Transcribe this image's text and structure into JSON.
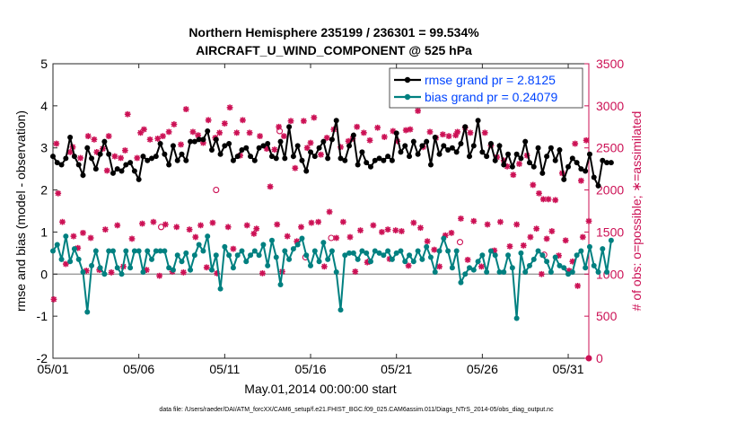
{
  "chart_data": {
    "type": "line",
    "title_line1": "Northern Hemisphere 235199 / 236301 = 99.534%",
    "title_line2": "AIRCRAFT_U_WIND_COMPONENT @ 525 hPa",
    "xlabel": "May.01,2014 00:00:00 start",
    "ylabel_left": "rmse and bias (model - observation)",
    "ylabel_right": "# of obs: o=possible; ∗=assimilated",
    "xlim": [
      0,
      31.2
    ],
    "ylim_left": [
      -2,
      5
    ],
    "ylim_right": [
      0,
      3500
    ],
    "x_ticks": [
      {
        "value": 0,
        "label": "05/01"
      },
      {
        "value": 5,
        "label": "05/06"
      },
      {
        "value": 10,
        "label": "05/11"
      },
      {
        "value": 15,
        "label": "05/16"
      },
      {
        "value": 20,
        "label": "05/21"
      },
      {
        "value": 25,
        "label": "05/26"
      },
      {
        "value": 30,
        "label": "05/31"
      }
    ],
    "y_ticks_left": [
      -2,
      -1,
      0,
      1,
      2,
      3,
      4,
      5
    ],
    "y_ticks_right": [
      0,
      500,
      1000,
      1500,
      2000,
      2500,
      3000,
      3500
    ],
    "footer": "data file: /Users/raeder/DAI/ATM_forcXX/CAM6_setup/f.e21.FHIST_BGC.f09_025.CAM6assim.011/Diags_NTrS_2014-05/obs_diag_output.nc",
    "colors": {
      "rmse": "#000000",
      "bias": "#008080",
      "obs": "#cc1155",
      "legend_text": "#0044ff",
      "right_axis": "#cc1155"
    },
    "series": [
      {
        "name": "rmse grand pr = 2.8125",
        "axis": "left",
        "step_days": 0.25,
        "values": [
          2.8,
          2.65,
          2.6,
          2.75,
          3.25,
          2.8,
          2.6,
          2.35,
          3.0,
          2.75,
          2.5,
          2.85,
          3.15,
          2.85,
          2.4,
          2.5,
          2.45,
          2.6,
          2.65,
          2.45,
          2.25,
          2.8,
          2.7,
          2.75,
          2.8,
          3.1,
          2.85,
          2.6,
          3.05,
          2.7,
          2.85,
          2.7,
          3.15,
          3.15,
          3.2,
          3.2,
          3.4,
          2.95,
          3.2,
          2.85,
          3.05,
          3.1,
          2.7,
          2.8,
          2.95,
          3.0,
          2.8,
          2.7,
          3.0,
          3.05,
          3.1,
          2.8,
          2.75,
          3.15,
          2.75,
          3.5,
          2.8,
          3.05,
          2.7,
          2.45,
          2.9,
          2.8,
          3.0,
          3.15,
          2.75,
          3.2,
          3.65,
          2.75,
          2.7,
          3.05,
          3.3,
          2.6,
          2.9,
          2.65,
          2.55,
          2.7,
          2.75,
          2.7,
          2.8,
          2.7,
          3.35,
          2.9,
          3.05,
          2.8,
          3.15,
          2.85,
          3.05,
          3.15,
          2.6,
          3.25,
          2.85,
          3.05,
          2.95,
          3.0,
          2.9,
          3.1,
          3.5,
          2.8,
          3.05,
          3.65,
          2.9,
          2.8,
          3.1,
          2.7,
          3.05,
          2.6,
          2.85,
          2.55,
          2.85,
          2.75,
          3.15,
          2.65,
          2.55,
          3.0,
          2.4,
          2.8,
          3.0,
          2.7,
          2.95,
          2.25,
          2.55,
          2.75,
          2.65,
          2.5,
          2.45,
          2.85,
          2.3,
          2.1,
          2.7,
          2.65,
          2.65
        ]
      },
      {
        "name": "bias grand pr = 0.24079",
        "axis": "left",
        "step_days": 0.25,
        "values": [
          0.55,
          0.7,
          0.35,
          0.9,
          0.3,
          0.6,
          0.35,
          0.05,
          -0.9,
          0.2,
          0.55,
          0.15,
          0.0,
          0.55,
          0.55,
          0.15,
          0.0,
          0.55,
          0.15,
          0.55,
          0.55,
          0.05,
          0.55,
          0.35,
          0.55,
          0.55,
          0.55,
          0.15,
          0.1,
          0.45,
          0.3,
          0.5,
          0.1,
          0.45,
          0.7,
          0.55,
          0.9,
          0.1,
          0.45,
          -0.35,
          0.65,
          0.45,
          0.15,
          0.45,
          0.55,
          0.3,
          0.45,
          0.55,
          0.45,
          0.7,
          0.2,
          0.8,
          0.4,
          -0.25,
          0.55,
          0.35,
          0.6,
          0.7,
          0.85,
          0.45,
          0.2,
          0.55,
          0.3,
          0.75,
          0.35,
          0.55,
          0.05,
          -0.85,
          0.45,
          0.5,
          0.5,
          0.35,
          0.55,
          0.5,
          0.3,
          0.55,
          0.5,
          0.45,
          0.55,
          0.35,
          0.5,
          0.55,
          0.3,
          0.45,
          0.3,
          0.55,
          0.35,
          0.65,
          0.4,
          0.05,
          0.55,
          0.85,
          0.55,
          0.15,
          0.55,
          -0.2,
          0.0,
          0.15,
          0.1,
          0.3,
          0.45,
          0.05,
          0.55,
          0.45,
          0.05,
          0.05,
          0.45,
          0.15,
          -1.05,
          0.5,
          0.05,
          0.2,
          0.35,
          0.55,
          0.45,
          0.3,
          0.05,
          0.4,
          0.2,
          0.15,
          0.0,
          0.05,
          0.45,
          0.55,
          0.15,
          0.65,
          0.2,
          0.05,
          0.6,
          0.05,
          0.8
        ]
      }
    ],
    "obs_points": [
      [
        0.05,
        700
      ],
      [
        0.2,
        2550
      ],
      [
        0.3,
        1960
      ],
      [
        0.55,
        1620
      ],
      [
        0.75,
        1120
      ],
      [
        1.0,
        2450
      ],
      [
        1.15,
        2510
      ],
      [
        1.2,
        1450
      ],
      [
        1.45,
        1310
      ],
      [
        1.6,
        2380
      ],
      [
        1.75,
        1490
      ],
      [
        1.95,
        1040
      ],
      [
        2.05,
        2640
      ],
      [
        2.2,
        1430
      ],
      [
        2.4,
        2600
      ],
      [
        2.55,
        2450
      ],
      [
        2.7,
        1050
      ],
      [
        2.9,
        2490
      ],
      [
        3.05,
        1530
      ],
      [
        3.15,
        2230
      ],
      [
        3.25,
        2640
      ],
      [
        3.4,
        1020
      ],
      [
        3.6,
        2400
      ],
      [
        3.75,
        1580
      ],
      [
        3.95,
        2380
      ],
      [
        4.1,
        1090
      ],
      [
        4.2,
        2470
      ],
      [
        4.35,
        2900
      ],
      [
        4.6,
        1420
      ],
      [
        4.9,
        2380
      ],
      [
        5.1,
        2680
      ],
      [
        5.2,
        1600
      ],
      [
        5.3,
        2720
      ],
      [
        5.45,
        1050
      ],
      [
        5.65,
        2600
      ],
      [
        5.85,
        1620
      ],
      [
        6.1,
        2610
      ],
      [
        6.2,
        980
      ],
      [
        6.4,
        2640
      ],
      [
        6.55,
        1590
      ],
      [
        6.75,
        2690
      ],
      [
        6.95,
        1030
      ],
      [
        7.05,
        2780
      ],
      [
        7.2,
        1560
      ],
      [
        7.45,
        2540
      ],
      [
        7.6,
        1020
      ],
      [
        7.75,
        2960
      ],
      [
        7.95,
        1530
      ],
      [
        8.15,
        2690
      ],
      [
        8.3,
        1440
      ],
      [
        8.45,
        2650
      ],
      [
        8.6,
        1580
      ],
      [
        8.75,
        2560
      ],
      [
        8.95,
        1080
      ],
      [
        9.05,
        2830
      ],
      [
        9.3,
        1610
      ],
      [
        9.45,
        2620
      ],
      [
        9.55,
        1010
      ],
      [
        9.7,
        2680
      ],
      [
        10.0,
        2790
      ],
      [
        10.2,
        1560
      ],
      [
        10.3,
        2980
      ],
      [
        10.5,
        1300
      ],
      [
        10.7,
        2680
      ],
      [
        10.9,
        2410
      ],
      [
        11.05,
        2830
      ],
      [
        11.3,
        1580
      ],
      [
        11.45,
        2680
      ],
      [
        11.7,
        1480
      ],
      [
        11.85,
        1540
      ],
      [
        12.05,
        2640
      ],
      [
        12.2,
        1010
      ],
      [
        12.45,
        2490
      ],
      [
        12.65,
        2040
      ],
      [
        12.9,
        2480
      ],
      [
        13.05,
        1590
      ],
      [
        13.15,
        2750
      ],
      [
        13.35,
        1030
      ],
      [
        13.45,
        2640
      ],
      [
        13.65,
        1450
      ],
      [
        13.85,
        2820
      ],
      [
        14.1,
        2260
      ],
      [
        14.2,
        1390
      ],
      [
        14.45,
        1560
      ],
      [
        14.6,
        2820
      ],
      [
        14.8,
        2500
      ],
      [
        15.0,
        2560
      ],
      [
        15.05,
        1610
      ],
      [
        15.2,
        2860
      ],
      [
        15.45,
        1620
      ],
      [
        15.6,
        2420
      ],
      [
        15.8,
        1090
      ],
      [
        15.95,
        2620
      ],
      [
        16.1,
        1740
      ],
      [
        16.35,
        2720
      ],
      [
        16.5,
        1430
      ],
      [
        16.75,
        2510
      ],
      [
        16.9,
        1620
      ],
      [
        17.2,
        2580
      ],
      [
        17.3,
        1440
      ],
      [
        17.45,
        2610
      ],
      [
        17.6,
        1030
      ],
      [
        17.7,
        2750
      ],
      [
        17.9,
        1520
      ],
      [
        18.1,
        2680
      ],
      [
        18.3,
        1140
      ],
      [
        18.45,
        2590
      ],
      [
        18.65,
        1580
      ],
      [
        18.9,
        2740
      ],
      [
        19.15,
        1500
      ],
      [
        19.3,
        2630
      ],
      [
        19.5,
        1530
      ],
      [
        19.6,
        1180
      ],
      [
        19.8,
        2700
      ],
      [
        19.95,
        1520
      ],
      [
        20.05,
        2580
      ],
      [
        20.3,
        1510
      ],
      [
        20.55,
        2710
      ],
      [
        20.7,
        1100
      ],
      [
        20.8,
        2720
      ],
      [
        21.0,
        1610
      ],
      [
        21.25,
        2940
      ],
      [
        21.4,
        1550
      ],
      [
        21.55,
        2510
      ],
      [
        21.8,
        1390
      ],
      [
        21.95,
        2690
      ],
      [
        22.2,
        1290
      ],
      [
        22.3,
        2620
      ],
      [
        22.5,
        1090
      ],
      [
        22.7,
        2660
      ],
      [
        22.85,
        1460
      ],
      [
        23.05,
        2640
      ],
      [
        23.2,
        1490
      ],
      [
        23.45,
        2650
      ],
      [
        23.55,
        2690
      ],
      [
        23.75,
        1660
      ],
      [
        24.0,
        2740
      ],
      [
        24.15,
        1170
      ],
      [
        24.3,
        2680
      ],
      [
        24.5,
        1630
      ],
      [
        24.75,
        3010
      ],
      [
        24.95,
        1090
      ],
      [
        25.15,
        2680
      ],
      [
        25.3,
        1590
      ],
      [
        25.5,
        2530
      ],
      [
        25.7,
        1280
      ],
      [
        25.85,
        2390
      ],
      [
        26.05,
        1620
      ],
      [
        26.25,
        2350
      ],
      [
        26.45,
        2280
      ],
      [
        26.6,
        1330
      ],
      [
        26.8,
        2180
      ],
      [
        27.0,
        1590
      ],
      [
        27.15,
        2310
      ],
      [
        27.4,
        1340
      ],
      [
        27.6,
        2410
      ],
      [
        27.8,
        1440
      ],
      [
        27.95,
        2060
      ],
      [
        28.15,
        1540
      ],
      [
        28.3,
        1960
      ],
      [
        28.45,
        1000
      ],
      [
        28.55,
        1890
      ],
      [
        28.75,
        1420
      ],
      [
        28.85,
        1890
      ],
      [
        29.05,
        1510
      ],
      [
        29.25,
        1880
      ],
      [
        29.45,
        1220
      ],
      [
        29.65,
        2200
      ],
      [
        29.85,
        1400
      ],
      [
        30.05,
        1040
      ],
      [
        30.25,
        1150
      ],
      [
        30.4,
        2550
      ],
      [
        30.55,
        860
      ],
      [
        30.75,
        2110
      ],
      [
        30.85,
        1440
      ],
      [
        31.05,
        2590
      ],
      [
        31.2,
        1630
      ]
    ],
    "obs_possible": [
      [
        6.3,
        1560
      ],
      [
        9.5,
        2000
      ],
      [
        13.2,
        2700
      ],
      [
        14.7,
        1200
      ],
      [
        16.2,
        1430
      ],
      [
        18.4,
        1150
      ],
      [
        23.7,
        1380
      ],
      [
        28.6,
        1230
      ]
    ]
  }
}
